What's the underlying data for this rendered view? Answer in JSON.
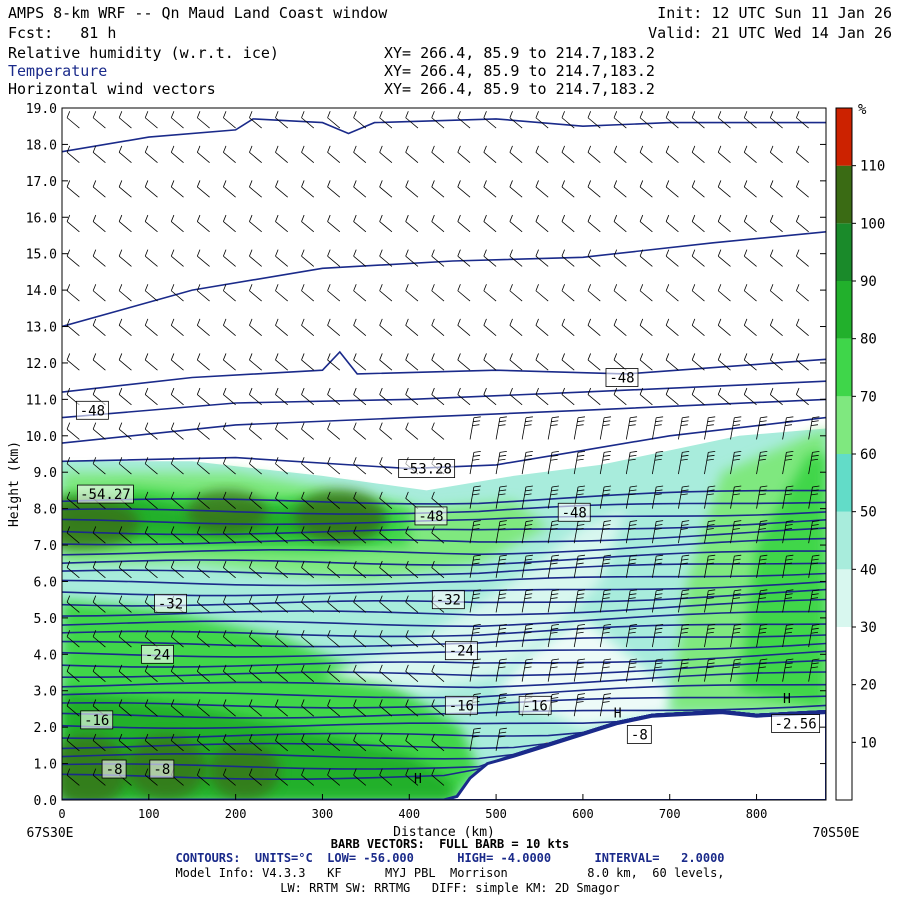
{
  "header": {
    "title": "AMPS 8-km WRF -- Qn Maud Land Coast window",
    "forecast_label": "Fcst:",
    "forecast_hours": "81 h",
    "init": "Init: 12 UTC Sun 11 Jan 26",
    "valid": "Valid: 21 UTC Wed 14 Jan 26"
  },
  "fields": [
    {
      "name": "Relative humidity (w.r.t. ice)",
      "coords": "XY= 266.4, 85.9 to 214.7,183.2",
      "color": "#000000"
    },
    {
      "name": "Temperature",
      "coords": "XY= 266.4, 85.9 to 214.7,183.2",
      "color": "#1a2a8a"
    },
    {
      "name": "Horizontal wind vectors",
      "coords": "XY= 266.4, 85.9 to 214.7,183.2",
      "color": "#000000"
    }
  ],
  "chart_data": {
    "type": "heatmap",
    "title": "Relative humidity (w.r.t. ice) / Temperature / Horizontal wind vectors cross-section",
    "xlabel": "Distance (km)",
    "ylabel": "Height (km)",
    "xlim": [
      0,
      880
    ],
    "ylim": [
      0,
      19
    ],
    "x_ticks": [
      0,
      100,
      200,
      300,
      400,
      500,
      600,
      700,
      800
    ],
    "y_ticks": [
      "0.0",
      "1.0",
      "2.0",
      "3.0",
      "4.0",
      "5.0",
      "6.0",
      "7.0",
      "8.0",
      "9.0",
      "10.0",
      "11.0",
      "12.0",
      "13.0",
      "14.0",
      "15.0",
      "16.0",
      "17.0",
      "18.0",
      "19.0"
    ],
    "x_start_label": "67S30E",
    "x_end_label": "70S50E",
    "colorbar": {
      "unit": "%",
      "levels": [
        10,
        20,
        30,
        40,
        50,
        60,
        70,
        80,
        90,
        100,
        110
      ],
      "colors": [
        "#ffffff",
        "#ffffff",
        "#ffffff",
        "#d8f7ef",
        "#a8ecdc",
        "#62dcc8",
        "#7fe87f",
        "#3fd64a",
        "#22b02c",
        "#1a8a2a",
        "#3a6b14",
        "#cc2200"
      ]
    },
    "temperature_labels": [
      {
        "text": "-48",
        "x": 35,
        "y": 10.7
      },
      {
        "text": "-48",
        "x": 645,
        "y": 11.6
      },
      {
        "text": "-53.28",
        "x": 420,
        "y": 9.1
      },
      {
        "text": "-54.27",
        "x": 50,
        "y": 8.4
      },
      {
        "text": "-48",
        "x": 425,
        "y": 7.8
      },
      {
        "text": "-48",
        "x": 590,
        "y": 7.9
      },
      {
        "text": "-32",
        "x": 125,
        "y": 5.4
      },
      {
        "text": "-32",
        "x": 445,
        "y": 5.5
      },
      {
        "text": "-24",
        "x": 110,
        "y": 4.0
      },
      {
        "text": "-24",
        "x": 460,
        "y": 4.1
      },
      {
        "text": "-16",
        "x": 40,
        "y": 2.2
      },
      {
        "text": "-16",
        "x": 460,
        "y": 2.6
      },
      {
        "text": "-16",
        "x": 545,
        "y": 2.6
      },
      {
        "text": "-8",
        "x": 60,
        "y": 0.85
      },
      {
        "text": "-8",
        "x": 115,
        "y": 0.85
      },
      {
        "text": "-8",
        "x": 665,
        "y": 1.8
      },
      {
        "text": "-2.56",
        "x": 845,
        "y": 2.1
      }
    ],
    "pressure_marks": [
      {
        "text": "H",
        "x": 410,
        "y": 0.6
      },
      {
        "text": "H",
        "x": 640,
        "y": 2.4
      },
      {
        "text": "H",
        "x": 835,
        "y": 2.8
      }
    ],
    "temperature_contours": {
      "units": "°C",
      "low": -56.0,
      "high": -4.0,
      "interval": 2.0
    }
  },
  "footer": {
    "barb_line": "BARB VECTORS:  FULL BARB = 10 kts",
    "contour_line": "CONTOURS:  UNITS=°C  LOW= -56.000      HIGH= -4.0000      INTERVAL=   2.0000",
    "model_line1": "Model Info: V4.3.3   KF      MYJ PBL  Morrison           8.0 km,  60 levels,",
    "model_line2": "LW: RRTM SW: RRTMG   DIFF: simple KM: 2D Smagor"
  }
}
